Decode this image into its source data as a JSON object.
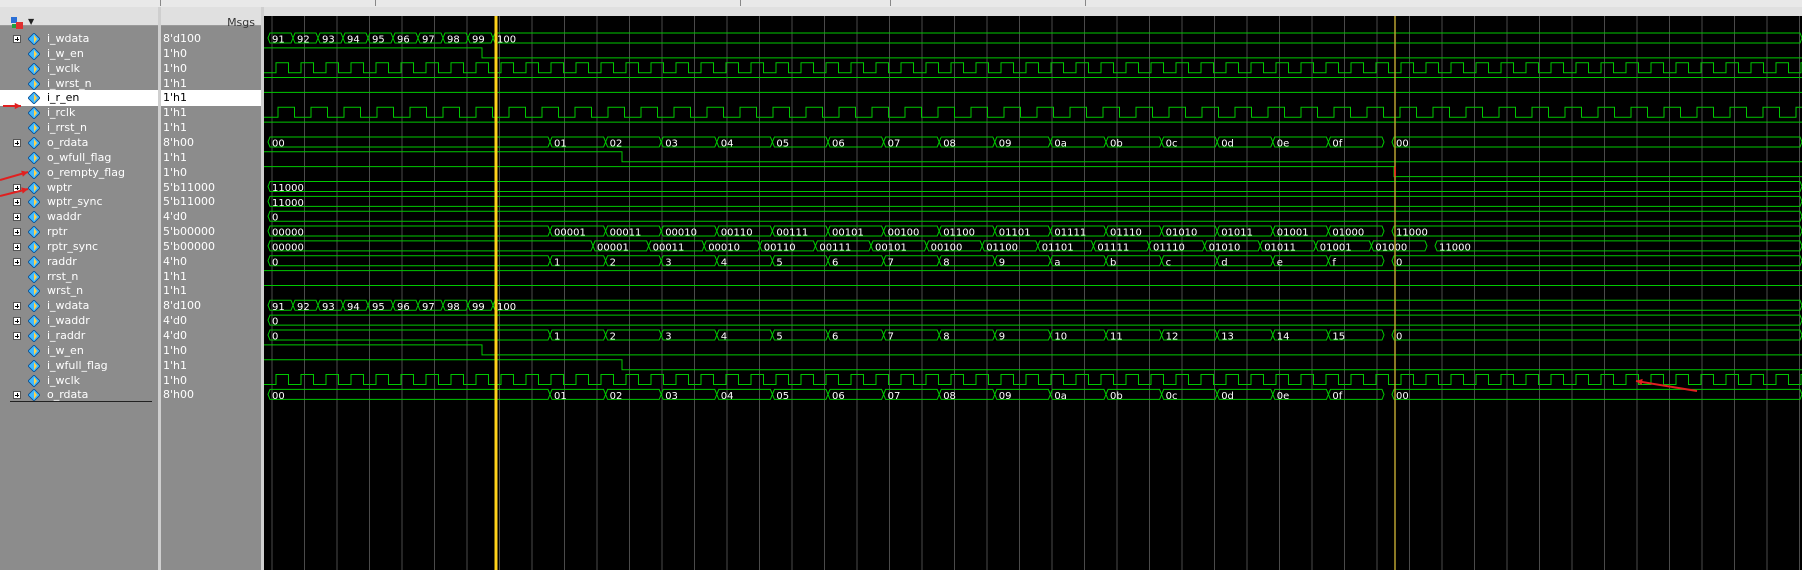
{
  "header": {
    "msgs_label": "Msgs"
  },
  "colors": {
    "wave": "#00c800",
    "cursor_main": "#ffd21a",
    "cursor_second": "#b8a030",
    "annotation": "#e02020"
  },
  "signals": [
    {
      "name": "i_wdata",
      "value": "8'd100",
      "type": "bus",
      "expand": true
    },
    {
      "name": "i_w_en",
      "value": "1'h0",
      "type": "bit",
      "expand": false
    },
    {
      "name": "i_wclk",
      "value": "1'h0",
      "type": "bit",
      "expand": false
    },
    {
      "name": "i_wrst_n",
      "value": "1'h1",
      "type": "bit",
      "expand": false
    },
    {
      "name": "i_r_en",
      "value": "1'h1",
      "type": "bit",
      "expand": false,
      "selected": true
    },
    {
      "name": "i_rclk",
      "value": "1'h1",
      "type": "bit",
      "expand": false
    },
    {
      "name": "i_rrst_n",
      "value": "1'h1",
      "type": "bit",
      "expand": false
    },
    {
      "name": "o_rdata",
      "value": "8'h00",
      "type": "bus",
      "expand": true
    },
    {
      "name": "o_wfull_flag",
      "value": "1'h1",
      "type": "bit",
      "expand": false
    },
    {
      "name": "o_rempty_flag",
      "value": "1'h0",
      "type": "bit",
      "expand": false
    },
    {
      "name": "wptr",
      "value": "5'b11000",
      "type": "bus",
      "expand": true
    },
    {
      "name": "wptr_sync",
      "value": "5'b11000",
      "type": "bus",
      "expand": true
    },
    {
      "name": "waddr",
      "value": "4'd0",
      "type": "bus",
      "expand": true
    },
    {
      "name": "rptr",
      "value": "5'b00000",
      "type": "bus",
      "expand": true
    },
    {
      "name": "rptr_sync",
      "value": "5'b00000",
      "type": "bus",
      "expand": true
    },
    {
      "name": "raddr",
      "value": "4'h0",
      "type": "bus",
      "expand": true
    },
    {
      "name": "rrst_n",
      "value": "1'h1",
      "type": "bit",
      "expand": false
    },
    {
      "name": "wrst_n",
      "value": "1'h1",
      "type": "bit",
      "expand": false
    },
    {
      "name": "i_wdata",
      "value": "8'd100",
      "type": "bus",
      "expand": true
    },
    {
      "name": "i_waddr",
      "value": "4'd0",
      "type": "bus",
      "expand": true
    },
    {
      "name": "i_raddr",
      "value": "4'd0",
      "type": "bus",
      "expand": true
    },
    {
      "name": "i_w_en",
      "value": "1'h0",
      "type": "bit",
      "expand": false
    },
    {
      "name": "i_wfull_flag",
      "value": "1'h1",
      "type": "bit",
      "expand": false
    },
    {
      "name": "i_wclk",
      "value": "1'h0",
      "type": "bit",
      "expand": false
    },
    {
      "name": "o_rdata",
      "value": "8'h00",
      "type": "bus",
      "expand": true
    }
  ],
  "wave_text": {
    "wdata": [
      "91",
      "92",
      "93",
      "94",
      "95",
      "96",
      "97",
      "98",
      "99",
      "100"
    ],
    "rdata": [
      "00",
      "01",
      "02",
      "03",
      "04",
      "05",
      "06",
      "07",
      "08",
      "09",
      "0a",
      "0b",
      "0c",
      "0d",
      "0e",
      "0f",
      "00"
    ],
    "wptr": "11000",
    "wptr_sync": "11000",
    "waddr": "0",
    "rptr": [
      "00000",
      "00001",
      "00011",
      "00010",
      "00110",
      "00111",
      "00101",
      "00100",
      "01100",
      "01101",
      "01111",
      "01110",
      "01010",
      "01011",
      "01001",
      "01000",
      "11000"
    ],
    "rptr_sync": [
      "00000",
      "00001",
      "00011",
      "00010",
      "00110",
      "00111",
      "00101",
      "00100",
      "01100",
      "01101",
      "01111",
      "01110",
      "01010",
      "01011",
      "01001",
      "01000",
      "11000"
    ],
    "raddr": [
      "0",
      "1",
      "2",
      "3",
      "4",
      "5",
      "6",
      "7",
      "8",
      "9",
      "a",
      "b",
      "c",
      "d",
      "e",
      "f",
      "0"
    ],
    "i_waddr": "0",
    "i_raddr": [
      "0",
      "1",
      "2",
      "3",
      "4",
      "5",
      "6",
      "7",
      "8",
      "9",
      "10",
      "11",
      "12",
      "13",
      "14",
      "15",
      "0"
    ]
  }
}
